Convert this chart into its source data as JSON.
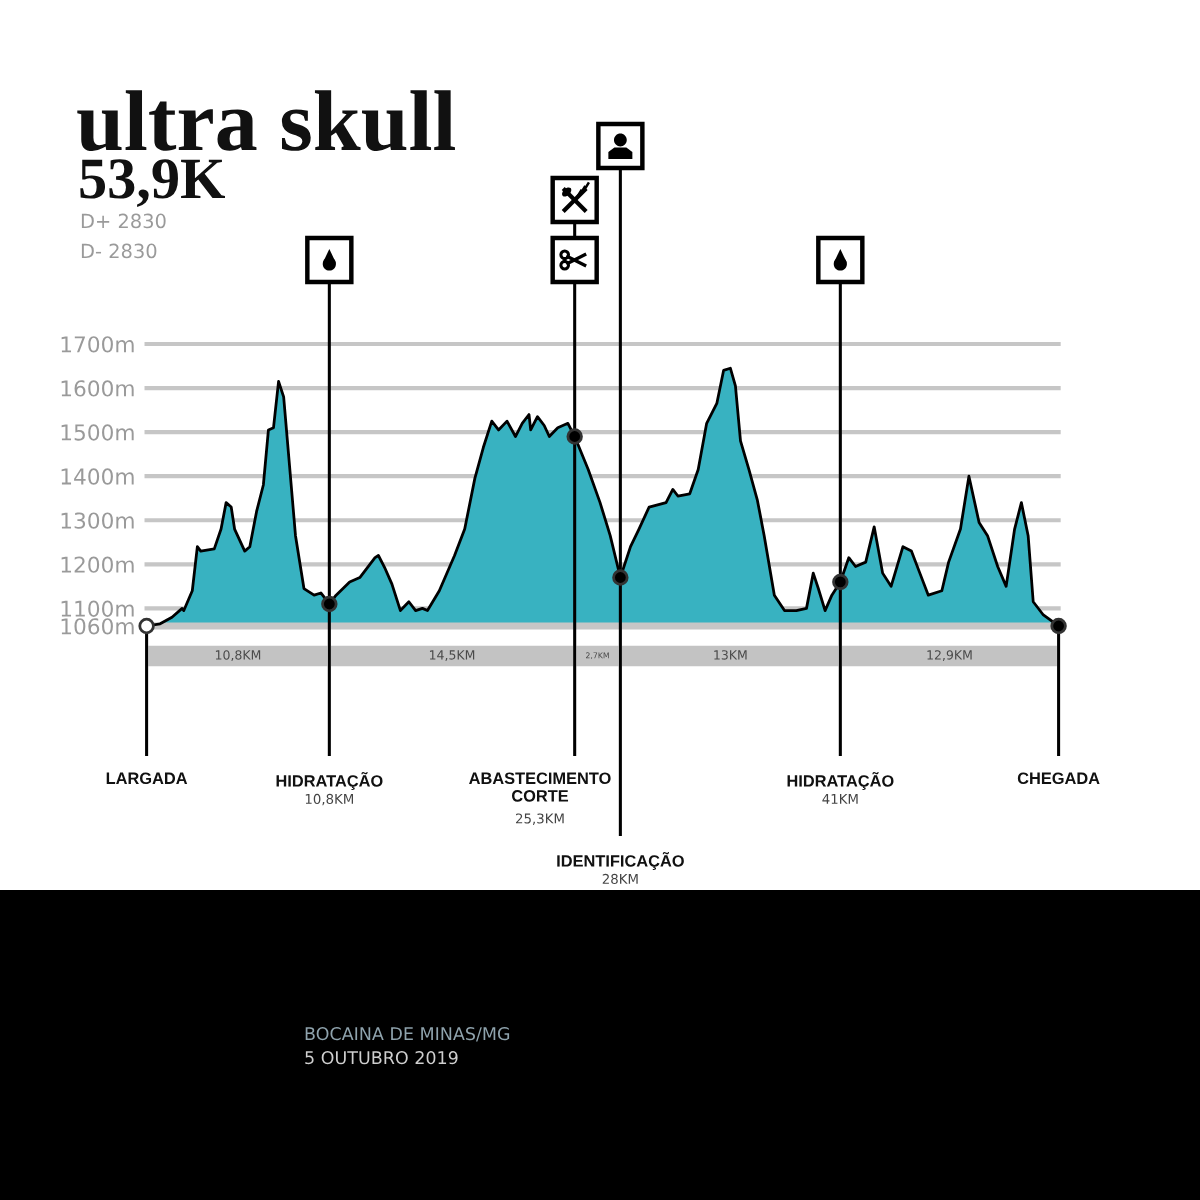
{
  "chart_data": [
    {
      "type": "area",
      "title": "ultra skull",
      "subtitle": "53,9K",
      "annotations": [
        "D+ 2830",
        "D- 2830",
        "BOCAINA DE MINAS/MG",
        "5 OUTUBRO 2019"
      ],
      "x": [
        0,
        0.8,
        1.5,
        2.1,
        2.2,
        2.7,
        3.0,
        3.2,
        4.0,
        4.4,
        4.7,
        5.0,
        5.2,
        5.8,
        6.1,
        6.5,
        6.9,
        7.2,
        7.5,
        7.8,
        8.1,
        8.4,
        8.8,
        9.3,
        9.9,
        10.3,
        10.8,
        11.2,
        12.0,
        12.6,
        13.5,
        13.7,
        14.1,
        14.5,
        15.0,
        15.5,
        15.9,
        16.3,
        16.6,
        17.3,
        18.2,
        18.8,
        19.4,
        19.9,
        20.4,
        20.8,
        21.3,
        21.8,
        22.2,
        22.6,
        22.7,
        23.1,
        23.5,
        23.8,
        24.3,
        24.9,
        25.3,
        26.1,
        26.8,
        27.4,
        28.0,
        28.6,
        29.1,
        29.7,
        30.7,
        31.1,
        31.4,
        32.1,
        32.6,
        33.1,
        33.7,
        34.1,
        34.5,
        34.8,
        35.1,
        35.6,
        36.1,
        36.5,
        37.1,
        37.7,
        38.4,
        39.0,
        39.4,
        39.7,
        40.1,
        40.5,
        41.0,
        41.5,
        41.9,
        42.5,
        43.0,
        43.5,
        44.0,
        44.7,
        45.2,
        45.7,
        46.2,
        47.0,
        47.4,
        48.1,
        48.6,
        49.2,
        49.7,
        50.3,
        50.8,
        51.3,
        51.7,
        52.1,
        52.4,
        53.0,
        53.9
      ],
      "series": [
        {
          "color": "#38b2c1",
          "values": [
            1060,
            1065,
            1080,
            1100,
            1095,
            1140,
            1240,
            1230,
            1235,
            1280,
            1340,
            1330,
            1280,
            1230,
            1240,
            1320,
            1380,
            1505,
            1510,
            1615,
            1580,
            1445,
            1265,
            1145,
            1130,
            1135,
            1110,
            1130,
            1160,
            1170,
            1215,
            1220,
            1190,
            1155,
            1095,
            1115,
            1095,
            1100,
            1095,
            1140,
            1220,
            1280,
            1395,
            1465,
            1525,
            1505,
            1525,
            1490,
            1520,
            1540,
            1505,
            1535,
            1515,
            1490,
            1510,
            1520,
            1490,
            1415,
            1340,
            1265,
            1170,
            1240,
            1280,
            1330,
            1340,
            1370,
            1355,
            1360,
            1415,
            1520,
            1565,
            1640,
            1645,
            1605,
            1480,
            1415,
            1345,
            1265,
            1130,
            1095,
            1095,
            1100,
            1180,
            1145,
            1095,
            1130,
            1160,
            1215,
            1195,
            1205,
            1285,
            1180,
            1150,
            1240,
            1230,
            1180,
            1130,
            1140,
            1205,
            1280,
            1400,
            1295,
            1265,
            1195,
            1150,
            1280,
            1340,
            1265,
            1115,
            1085,
            1060
          ]
        },
        {
          "type": "scatter",
          "marker": "circle",
          "x": [
            0,
            10.8,
            25.3,
            28,
            41,
            53.9
          ],
          "colors": [
            "#ffffff",
            "#000000",
            "#000000",
            "#000000",
            "#000000",
            "#000000"
          ],
          "values": [
            1060,
            1110,
            1490,
            1170,
            1160,
            1060
          ]
        }
      ],
      "xlim": [
        0,
        53.9
      ],
      "ylim": [
        1060,
        1700
      ],
      "yticks": [
        {
          "value": 1060,
          "label": "1060m"
        },
        {
          "value": 1100,
          "label": "1100m"
        },
        {
          "value": 1200,
          "label": "1200m"
        },
        {
          "value": 1300,
          "label": "1300m"
        },
        {
          "value": 1400,
          "label": "1400m"
        },
        {
          "value": 1500,
          "label": "1500m"
        },
        {
          "value": 1600,
          "label": "1600m"
        },
        {
          "value": 1700,
          "label": "1700m"
        }
      ],
      "grid": "y",
      "tick_labels": "y",
      "ref_lines": [
        {
          "axis": "x",
          "value": 0,
          "label": "LARGADA",
          "color": "#000000"
        },
        {
          "axis": "x",
          "value": 10.8,
          "label": "HIDRATAÇÃO\n10,8KM",
          "color": "#000000"
        },
        {
          "axis": "x",
          "value": 25.3,
          "label": "ABASTECIMENTO\nCORTE\n25,3KM",
          "color": "#000000"
        },
        {
          "axis": "x",
          "value": 28,
          "label": "IDENTIFICAÇÃO\n28KM",
          "color": "#000000"
        },
        {
          "axis": "x",
          "value": 41,
          "label": "HIDRATAÇÃO\n41KM",
          "color": "#000000"
        },
        {
          "axis": "x",
          "value": 53.9,
          "label": "CHEGADA",
          "color": "#000000"
        }
      ]
    },
    {
      "type": "bar",
      "orientation": "horizontal",
      "stacked": true,
      "categories": [
        null
      ],
      "xlim": [
        0,
        53.9
      ],
      "tick_labels": false,
      "series": [
        {
          "color": "#c3c3c3",
          "values": [
            10.8
          ],
          "value_labels": [
            "10,8KM"
          ]
        },
        {
          "color": "#c3c3c3",
          "values": [
            14.5
          ],
          "value_labels": [
            "14,5KM"
          ]
        },
        {
          "color": "#c3c3c3",
          "values": [
            2.7
          ],
          "value_labels": [
            "2,7KM"
          ]
        },
        {
          "color": "#c3c3c3",
          "values": [
            13
          ],
          "value_labels": [
            "13KM"
          ]
        },
        {
          "color": "#c3c3c3",
          "values": [
            12.9
          ],
          "value_labels": [
            "12,9KM"
          ]
        }
      ]
    }
  ]
}
